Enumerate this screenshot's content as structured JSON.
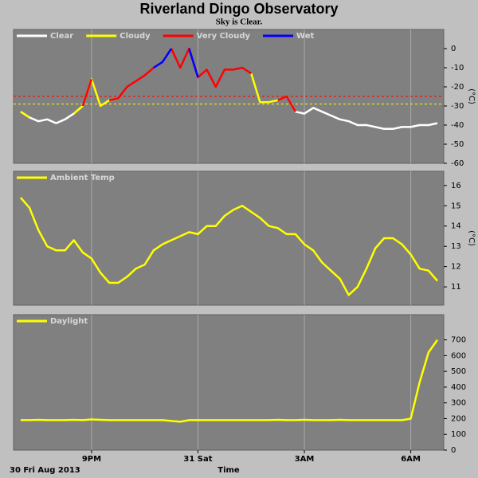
{
  "title": "Riverland Dingo Observatory",
  "subtitle": "Sky is Clear.",
  "chart_data": [
    {
      "type": "line",
      "xlim": [
        18.8,
        30.93
      ],
      "ylim": [
        -60,
        10
      ],
      "yticks": [
        0,
        -10,
        -20,
        -30,
        -40,
        -50,
        -60
      ],
      "ylabel": "(°C)",
      "grid": "x",
      "thresholds": [
        {
          "value": -25,
          "color": "#ff0000"
        },
        {
          "value": -29,
          "color": "#ffff00"
        }
      ],
      "x": [
        19.0,
        19.25,
        19.5,
        19.75,
        20.0,
        20.25,
        20.5,
        20.75,
        21.0,
        21.25,
        21.5,
        21.75,
        22.0,
        22.25,
        22.5,
        22.75,
        23.0,
        23.25,
        23.5,
        23.75,
        24.0,
        24.25,
        24.5,
        24.75,
        25.0,
        25.25,
        25.5,
        25.75,
        26.0,
        26.25,
        26.5,
        26.75,
        27.0,
        27.25,
        27.5,
        27.75,
        28.0,
        28.25,
        28.5,
        28.75,
        29.0,
        29.25,
        29.5,
        29.75,
        30.0,
        30.25,
        30.5,
        30.75
      ],
      "series": [
        {
          "name": "Clear",
          "color": "#ffffff",
          "values": [
            -33,
            -36,
            -38,
            -37,
            -39,
            -37,
            -34,
            -30,
            null,
            null,
            null,
            null,
            null,
            null,
            null,
            null,
            null,
            null,
            null,
            null,
            null,
            null,
            null,
            null,
            null,
            null,
            null,
            null,
            null,
            null,
            -25,
            -33,
            -34,
            -31,
            -33,
            -35,
            -37,
            -38,
            -40,
            -40,
            -41,
            -42,
            -42,
            -41,
            -41,
            -40,
            -40,
            -39
          ]
        },
        {
          "name": "Cloudy",
          "color": "#ffff00",
          "values": [
            -33,
            -36,
            null,
            null,
            null,
            null,
            -34,
            -30,
            -16,
            -30,
            -27,
            -26,
            null,
            null,
            null,
            null,
            null,
            null,
            null,
            null,
            null,
            null,
            null,
            null,
            null,
            null,
            -13,
            -28,
            -28,
            -27,
            -25,
            null,
            null,
            null,
            null,
            null,
            null,
            null,
            null,
            null,
            null,
            null,
            null,
            null,
            null,
            null,
            null,
            null
          ]
        },
        {
          "name": "Very Cloudy",
          "color": "#ff0000",
          "values": [
            null,
            null,
            null,
            null,
            null,
            null,
            null,
            -30,
            -16,
            null,
            -27,
            -26,
            -20,
            -17,
            -14,
            -10,
            null,
            0,
            -10,
            0,
            -15,
            -11,
            -20,
            -11,
            -11,
            -10,
            -13,
            null,
            null,
            -27,
            -25,
            -33,
            null,
            null,
            null,
            null,
            null,
            null,
            null,
            null,
            null,
            null,
            null,
            null,
            null,
            null,
            null,
            null
          ]
        },
        {
          "name": "Wet",
          "color": "#0000ff",
          "values": [
            null,
            null,
            null,
            null,
            null,
            null,
            null,
            null,
            null,
            null,
            null,
            null,
            null,
            null,
            null,
            -10,
            -7,
            0,
            null,
            0,
            -15,
            null,
            null,
            null,
            null,
            null,
            null,
            null,
            null,
            null,
            null,
            null,
            null,
            null,
            null,
            null,
            null,
            null,
            null,
            null,
            null,
            null,
            null,
            null,
            null,
            null,
            null,
            null
          ]
        }
      ]
    },
    {
      "type": "line",
      "xlim": [
        18.8,
        30.93
      ],
      "ylim": [
        10.1,
        16.7
      ],
      "yticks": [
        11,
        12,
        13,
        14,
        15,
        16
      ],
      "ylabel": "(°C)",
      "grid": "x",
      "x": [
        19.0,
        19.25,
        19.5,
        19.75,
        20.0,
        20.25,
        20.5,
        20.75,
        21.0,
        21.25,
        21.5,
        21.75,
        22.0,
        22.25,
        22.5,
        22.75,
        23.0,
        23.25,
        23.5,
        23.75,
        24.0,
        24.25,
        24.5,
        24.75,
        25.0,
        25.25,
        25.5,
        25.75,
        26.0,
        26.25,
        26.5,
        26.75,
        27.0,
        27.25,
        27.5,
        27.75,
        28.0,
        28.25,
        28.5,
        28.75,
        29.0,
        29.25,
        29.5,
        29.75,
        30.0,
        30.25,
        30.5,
        30.75
      ],
      "series": [
        {
          "name": "Ambient Temp",
          "color": "#ffff00",
          "values": [
            15.4,
            14.9,
            13.8,
            13.0,
            12.8,
            12.8,
            13.3,
            12.7,
            12.4,
            11.7,
            11.2,
            11.2,
            11.5,
            11.9,
            12.1,
            12.8,
            13.1,
            13.3,
            13.5,
            13.7,
            13.6,
            14.0,
            14.0,
            14.5,
            14.8,
            15.0,
            14.7,
            14.4,
            14.0,
            13.9,
            13.6,
            13.6,
            13.1,
            12.8,
            12.2,
            11.8,
            11.4,
            10.6,
            11.0,
            11.9,
            12.9,
            13.4,
            13.4,
            13.1,
            12.6,
            11.9,
            11.8,
            11.3
          ]
        }
      ]
    },
    {
      "type": "line",
      "xlim": [
        18.8,
        30.93
      ],
      "ylim": [
        0,
        860
      ],
      "yticks": [
        0,
        100,
        200,
        300,
        400,
        500,
        600,
        700
      ],
      "grid": "x",
      "xlabel": "Time",
      "date_label": "30 Fri Aug 2013",
      "xticks": [
        {
          "value": 21,
          "label": "9PM"
        },
        {
          "value": 24,
          "label": "31 Sat"
        },
        {
          "value": 27,
          "label": "3AM"
        },
        {
          "value": 30,
          "label": "6AM"
        }
      ],
      "x": [
        19.0,
        19.25,
        19.5,
        19.75,
        20.0,
        20.25,
        20.5,
        20.75,
        21.0,
        21.25,
        21.5,
        21.75,
        22.0,
        22.25,
        22.5,
        22.75,
        23.0,
        23.25,
        23.5,
        23.75,
        24.0,
        24.25,
        24.5,
        24.75,
        25.0,
        25.25,
        25.5,
        25.75,
        26.0,
        26.25,
        26.5,
        26.75,
        27.0,
        27.25,
        27.5,
        27.75,
        28.0,
        28.25,
        28.5,
        28.75,
        29.0,
        29.25,
        29.5,
        29.75,
        30.0,
        30.25,
        30.5,
        30.75
      ],
      "series": [
        {
          "name": "Daylight",
          "color": "#ffff00",
          "values": [
            190,
            190,
            192,
            190,
            190,
            190,
            192,
            190,
            195,
            192,
            190,
            190,
            190,
            190,
            190,
            190,
            190,
            185,
            180,
            190,
            190,
            190,
            190,
            190,
            190,
            190,
            190,
            190,
            190,
            192,
            190,
            190,
            192,
            190,
            190,
            190,
            192,
            190,
            190,
            190,
            190,
            190,
            190,
            190,
            200,
            430,
            620,
            700
          ]
        }
      ]
    }
  ]
}
